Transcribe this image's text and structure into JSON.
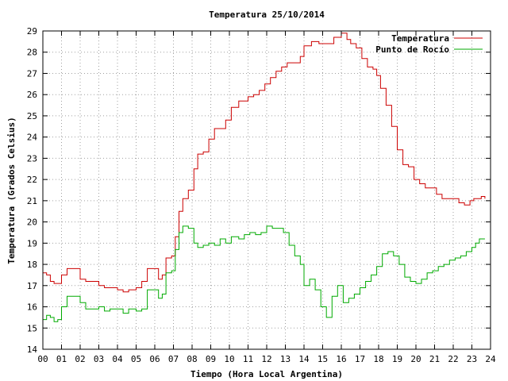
{
  "chart_data": {
    "type": "line",
    "title": "Temperatura 25/10/2014",
    "xlabel": "Tiempo (Hora Local Argentina)",
    "ylabel": "Temperatura (Grados Celsius)",
    "xlim": [
      0,
      24
    ],
    "ylim": [
      14,
      29
    ],
    "x_ticks": [
      "00",
      "01",
      "02",
      "03",
      "04",
      "05",
      "06",
      "07",
      "08",
      "09",
      "10",
      "11",
      "12",
      "13",
      "14",
      "15",
      "16",
      "17",
      "18",
      "19",
      "20",
      "21",
      "22",
      "23",
      "24"
    ],
    "y_ticks": [
      14,
      15,
      16,
      17,
      18,
      19,
      20,
      21,
      22,
      23,
      24,
      25,
      26,
      27,
      28,
      29
    ],
    "grid": true,
    "legend_position": "top-right",
    "series": [
      {
        "name": "Temperatura",
        "color": "#cc0000",
        "x": [
          0,
          0.2,
          0.4,
          0.6,
          0.8,
          1.0,
          1.3,
          1.6,
          2.0,
          2.3,
          2.6,
          3.0,
          3.3,
          3.6,
          4.0,
          4.3,
          4.6,
          5.0,
          5.3,
          5.6,
          6.0,
          6.2,
          6.4,
          6.6,
          6.9,
          7.1,
          7.3,
          7.5,
          7.8,
          8.1,
          8.3,
          8.6,
          8.9,
          9.2,
          9.4,
          9.8,
          10.1,
          10.5,
          11.0,
          11.3,
          11.6,
          11.9,
          12.2,
          12.5,
          12.8,
          13.1,
          13.5,
          13.8,
          14.0,
          14.4,
          14.8,
          15.2,
          15.6,
          16.0,
          16.3,
          16.5,
          16.8,
          17.1,
          17.4,
          17.7,
          17.9,
          18.1,
          18.4,
          18.7,
          19.0,
          19.3,
          19.6,
          19.9,
          20.2,
          20.5,
          20.8,
          21.1,
          21.4,
          21.7,
          22.0,
          22.3,
          22.6,
          22.9,
          23.1,
          23.3,
          23.5,
          23.7
        ],
        "values": [
          17.6,
          17.5,
          17.2,
          17.1,
          17.1,
          17.5,
          17.8,
          17.8,
          17.3,
          17.2,
          17.2,
          17.0,
          16.9,
          16.9,
          16.8,
          16.7,
          16.8,
          16.9,
          17.2,
          17.8,
          17.8,
          17.3,
          17.5,
          18.3,
          18.4,
          19.3,
          20.5,
          21.1,
          21.5,
          22.5,
          23.2,
          23.3,
          23.9,
          24.4,
          24.4,
          24.8,
          25.4,
          25.7,
          25.9,
          26.0,
          26.2,
          26.5,
          26.8,
          27.1,
          27.3,
          27.5,
          27.5,
          27.8,
          28.3,
          28.5,
          28.4,
          28.4,
          28.7,
          28.9,
          28.6,
          28.4,
          28.2,
          27.7,
          27.3,
          27.2,
          26.9,
          26.3,
          25.5,
          24.5,
          23.4,
          22.7,
          22.6,
          22.0,
          21.8,
          21.6,
          21.6,
          21.3,
          21.1,
          21.1,
          21.1,
          20.9,
          20.8,
          21.0,
          21.1,
          21.1,
          21.2,
          21.1
        ]
      },
      {
        "name": "Punto de Rocío",
        "color": "#00aa00",
        "x": [
          0,
          0.2,
          0.4,
          0.6,
          0.8,
          1.0,
          1.3,
          1.6,
          2.0,
          2.3,
          2.6,
          3.0,
          3.3,
          3.6,
          4.0,
          4.3,
          4.6,
          5.0,
          5.3,
          5.6,
          6.0,
          6.2,
          6.4,
          6.6,
          6.9,
          7.1,
          7.3,
          7.5,
          7.8,
          8.1,
          8.3,
          8.6,
          8.9,
          9.2,
          9.5,
          9.8,
          10.1,
          10.5,
          10.8,
          11.1,
          11.4,
          11.7,
          12.0,
          12.3,
          12.6,
          12.9,
          13.2,
          13.5,
          13.8,
          14.0,
          14.3,
          14.6,
          14.9,
          15.2,
          15.5,
          15.8,
          16.1,
          16.4,
          16.7,
          17.0,
          17.3,
          17.6,
          17.9,
          18.2,
          18.5,
          18.8,
          19.1,
          19.4,
          19.7,
          20.0,
          20.3,
          20.6,
          20.9,
          21.2,
          21.5,
          21.8,
          22.1,
          22.4,
          22.7,
          23.0,
          23.2,
          23.4,
          23.6,
          23.7
        ],
        "values": [
          15.4,
          15.6,
          15.5,
          15.3,
          15.4,
          16.0,
          16.5,
          16.5,
          16.2,
          15.9,
          15.9,
          16.0,
          15.8,
          15.9,
          15.9,
          15.7,
          15.9,
          15.8,
          15.9,
          16.8,
          16.8,
          16.4,
          16.6,
          17.6,
          17.7,
          18.7,
          19.5,
          19.8,
          19.7,
          19.0,
          18.8,
          18.9,
          19.0,
          18.9,
          19.2,
          19.0,
          19.3,
          19.2,
          19.4,
          19.5,
          19.4,
          19.5,
          19.8,
          19.7,
          19.7,
          19.5,
          18.9,
          18.4,
          18.0,
          17.0,
          17.3,
          16.8,
          16.0,
          15.5,
          16.5,
          17.0,
          16.2,
          16.4,
          16.6,
          16.9,
          17.2,
          17.5,
          17.9,
          18.5,
          18.6,
          18.4,
          18.0,
          17.4,
          17.2,
          17.1,
          17.3,
          17.6,
          17.7,
          17.9,
          18.0,
          18.2,
          18.3,
          18.4,
          18.6,
          18.8,
          19.0,
          19.2,
          19.2,
          19.2
        ]
      }
    ]
  }
}
